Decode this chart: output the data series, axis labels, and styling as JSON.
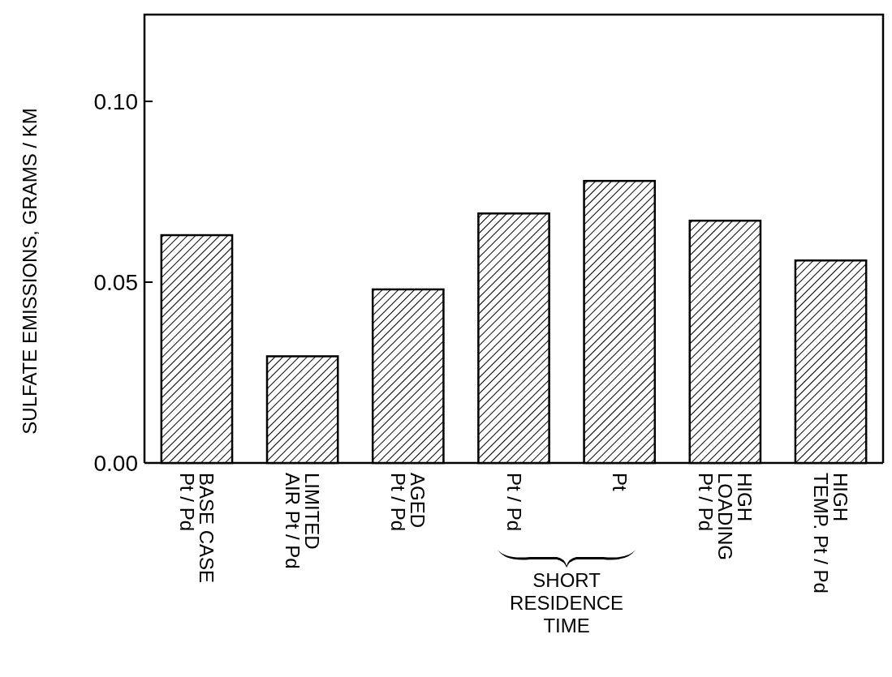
{
  "chart_data": {
    "type": "bar",
    "ylabel": "SULFATE EMISSIONS, GRAMS / KM",
    "categories": [
      "BASE CASE\nPt / Pd",
      "LIMITED\nAIR Pt / Pd",
      "AGED\nPt / Pd",
      "Pt / Pd",
      "Pt",
      "HIGH\nLOADING\nPt / Pd",
      "HIGH\nTEMP. Pt / Pd"
    ],
    "values": [
      0.063,
      0.0295,
      0.048,
      0.069,
      0.078,
      0.067,
      0.056
    ],
    "color": "#000000",
    "ylim": [
      0,
      0.124
    ],
    "yticks": [
      {
        "value": 0,
        "label": "0.00"
      },
      {
        "value": 0.05,
        "label": "0.05"
      },
      {
        "value": 0.1,
        "label": "0.10"
      }
    ],
    "annotations": [
      "SHORT\nRESIDENCE\nTIME"
    ]
  }
}
